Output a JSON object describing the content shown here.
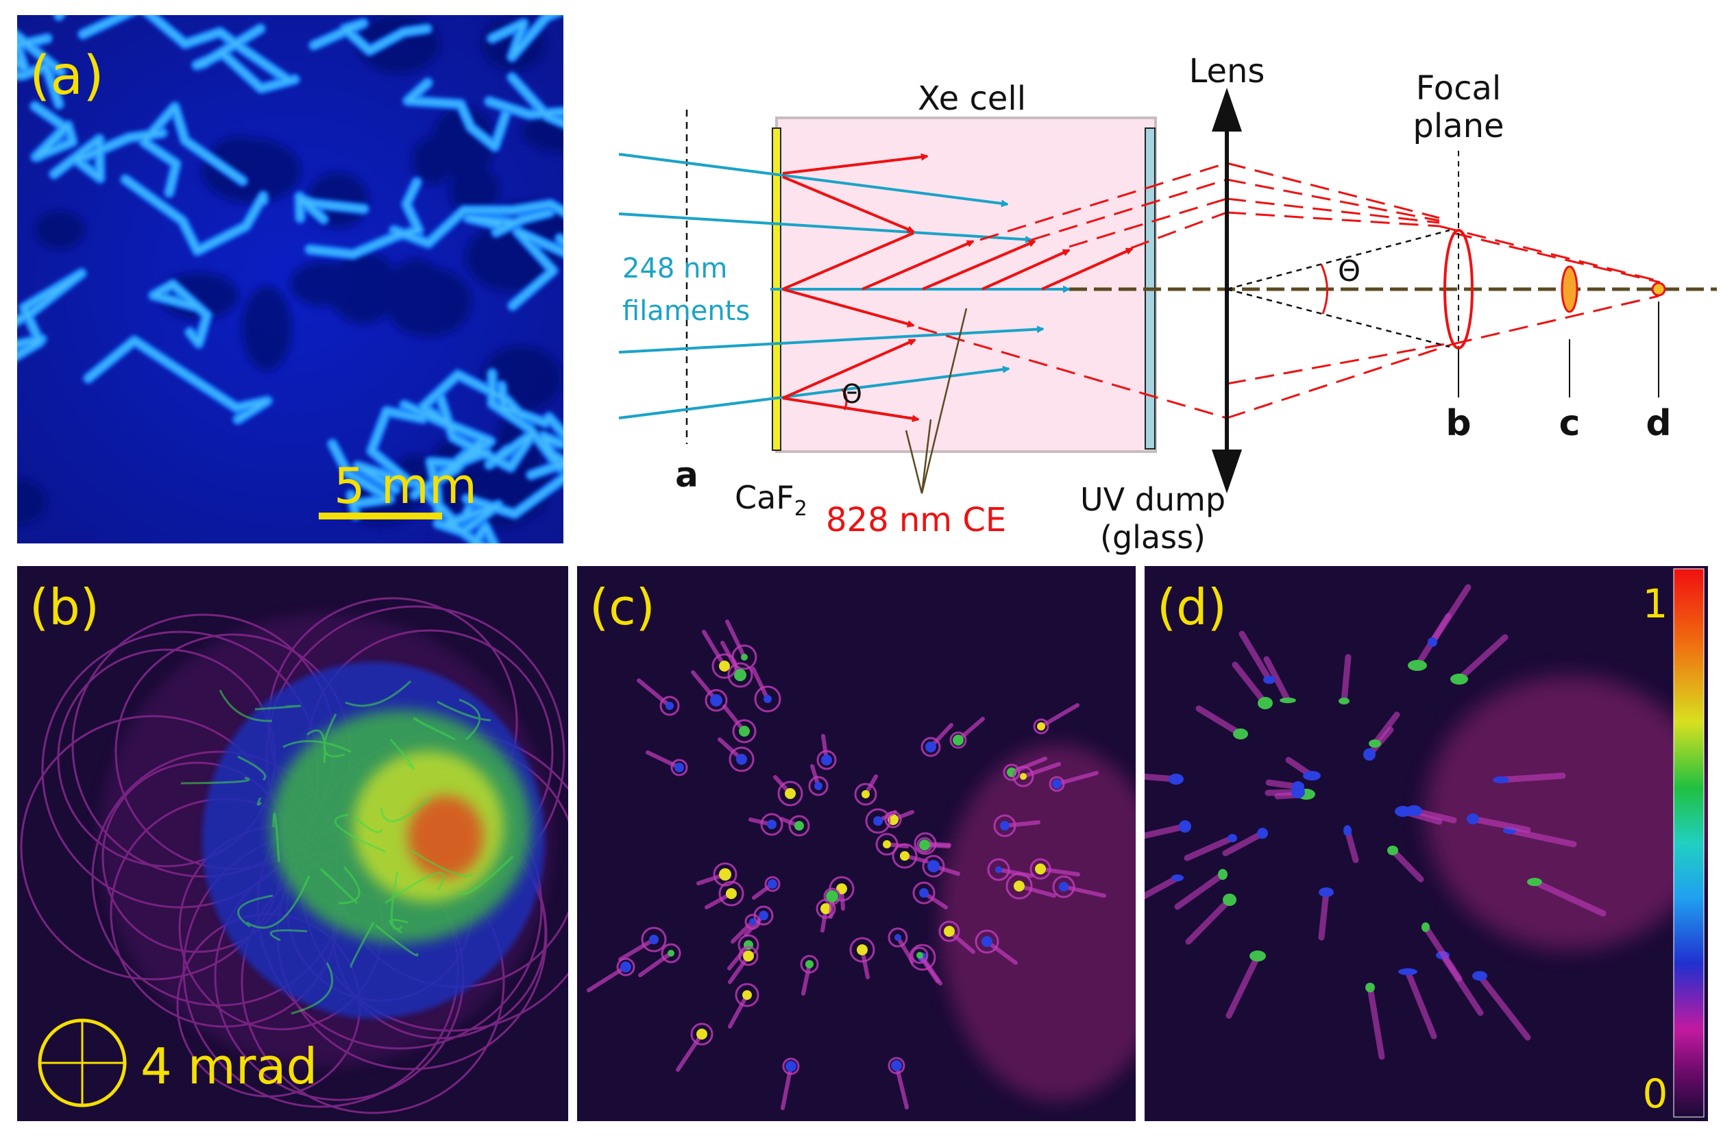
{
  "panel_a": {
    "label": "(a)",
    "scale_bar": "5 mm"
  },
  "diagram": {
    "xe_cell": "Xe cell",
    "lens": "Lens",
    "focal_plane_line1": "Focal",
    "focal_plane_line2": "plane",
    "beam_label_line1": "248 nm",
    "beam_label_line2": "filaments",
    "theta_cell": "Θ",
    "theta_lens": "Θ",
    "plane_a": "a",
    "plane_b": "b",
    "plane_c": "c",
    "plane_d": "d",
    "caf2": "CaF",
    "caf2_sub": "2",
    "ce_label": "828 nm CE",
    "uv_dump_line1": "UV dump",
    "uv_dump_line2": "(glass)"
  },
  "panel_b": {
    "label": "(b)",
    "scale": "4 mrad"
  },
  "panel_c": {
    "label": "(c)"
  },
  "panel_d": {
    "label": "(d)",
    "colorbar_max": "1",
    "colorbar_min": "0"
  },
  "colors": {
    "label_yellow": "#f5e000",
    "uv_blue": "#1aa3c8",
    "ce_red": "#ee1111",
    "cell_pink": "#fde3ee",
    "dark_bg": "#1a0a36"
  }
}
